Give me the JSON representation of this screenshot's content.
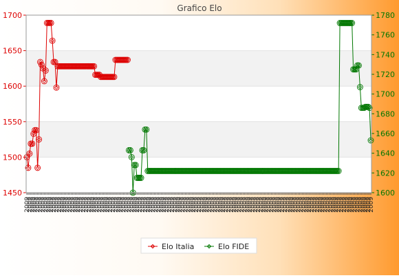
{
  "chart_data": {
    "type": "line",
    "title": "Grafico Elo",
    "x_tick_label": "2009",
    "legend_position": "bottom",
    "y_left": {
      "min": 1450,
      "max": 1700,
      "ticks": [
        1450,
        1500,
        1550,
        1600,
        1650,
        1700
      ],
      "color": "#dd0000"
    },
    "y_right": {
      "min": 1600,
      "max": 1780,
      "ticks": [
        1600,
        1620,
        1640,
        1660,
        1680,
        1700,
        1720,
        1740,
        1760,
        1780
      ],
      "color": "#007700"
    },
    "series": [
      {
        "name": "Elo Italia",
        "axis": "left",
        "color": "#dd0000",
        "values": [
          1500,
          1485,
          1505,
          1519,
          1519,
          1533,
          1538,
          1538,
          1485,
          1525,
          1634,
          1630,
          1625,
          1607,
          1622,
          1689,
          1689,
          1689,
          1689,
          1664,
          1634,
          1634,
          1598,
          1628,
          1628,
          1628,
          1628,
          1628,
          1628,
          1628,
          1628,
          1628,
          1628,
          1628,
          1628,
          1628,
          1628,
          1628,
          1628,
          1628,
          1628,
          1628,
          1628,
          1628,
          1628,
          1628,
          1628,
          1628,
          1628,
          1628,
          1628,
          1616,
          1616,
          1616,
          1616,
          1613,
          1613,
          1613,
          1613,
          1613,
          1613,
          1613,
          1613,
          1613,
          1613,
          1613,
          1637,
          1637,
          1637,
          1637,
          1637,
          1637,
          1637,
          1637,
          1637,
          1637
        ]
      },
      {
        "name": "Elo FIDE",
        "axis": "right",
        "color": "#007700",
        "values": [
          null,
          null,
          null,
          null,
          null,
          null,
          null,
          null,
          null,
          null,
          null,
          null,
          null,
          null,
          null,
          null,
          null,
          null,
          null,
          null,
          null,
          null,
          null,
          null,
          null,
          null,
          null,
          null,
          null,
          null,
          null,
          null,
          null,
          null,
          null,
          null,
          null,
          null,
          null,
          null,
          null,
          null,
          null,
          null,
          null,
          null,
          null,
          null,
          null,
          null,
          null,
          null,
          null,
          null,
          null,
          null,
          null,
          null,
          null,
          null,
          null,
          null,
          null,
          null,
          null,
          null,
          null,
          null,
          null,
          null,
          null,
          null,
          null,
          null,
          null,
          null,
          1643,
          1643,
          1636,
          1600,
          1628,
          1628,
          1615,
          1615,
          1615,
          1615,
          1643,
          1643,
          1664,
          1664,
          1622,
          1622,
          1622,
          1622,
          1622,
          1622,
          1622,
          1622,
          1622,
          1622,
          1622,
          1622,
          1622,
          1622,
          1622,
          1622,
          1622,
          1622,
          1622,
          1622,
          1622,
          1622,
          1622,
          1622,
          1622,
          1622,
          1622,
          1622,
          1622,
          1622,
          1622,
          1622,
          1622,
          1622,
          1622,
          1622,
          1622,
          1622,
          1622,
          1622,
          1622,
          1622,
          1622,
          1622,
          1622,
          1622,
          1622,
          1622,
          1622,
          1622,
          1622,
          1622,
          1622,
          1622,
          1622,
          1622,
          1622,
          1622,
          1622,
          1622,
          1622,
          1622,
          1622,
          1622,
          1622,
          1622,
          1622,
          1622,
          1622,
          1622,
          1622,
          1622,
          1622,
          1622,
          1622,
          1622,
          1622,
          1622,
          1622,
          1622,
          1622,
          1622,
          1622,
          1622,
          1622,
          1622,
          1622,
          1622,
          1622,
          1622,
          1622,
          1622,
          1622,
          1622,
          1622,
          1622,
          1622,
          1622,
          1622,
          1622,
          1622,
          1622,
          1622,
          1622,
          1622,
          1622,
          1622,
          1622,
          1622,
          1622,
          1622,
          1622,
          1622,
          1622,
          1622,
          1622,
          1622,
          1622,
          1622,
          1622,
          1622,
          1622,
          1622,
          1622,
          1622,
          1622,
          1622,
          1622,
          1622,
          1622,
          1622,
          1622,
          1622,
          1622,
          1622,
          1622,
          1622,
          1622,
          1622,
          1622,
          1622,
          1622,
          1622,
          1772,
          1772,
          1772,
          1772,
          1772,
          1772,
          1772,
          1772,
          1772,
          1772,
          1725,
          1725,
          1725,
          1729,
          1729,
          1707,
          1686,
          1686,
          1686,
          1687,
          1687,
          1687,
          1686,
          1653
        ]
      }
    ]
  }
}
